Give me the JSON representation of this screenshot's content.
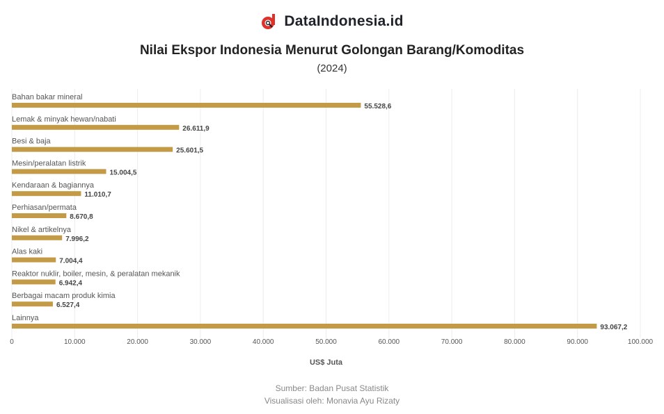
{
  "brand": {
    "name": "DataIndonesia.id",
    "icon": "dataindonesia-logo-icon"
  },
  "colors": {
    "bar": "#c39a45",
    "grid": "#ececec",
    "text": "#555555",
    "logo_red": "#e0302a"
  },
  "chart_data": {
    "type": "bar",
    "orientation": "horizontal",
    "title": "Nilai Ekspor Indonesia Menurut Golongan Barang/Komoditas",
    "subtitle": "(2024)",
    "xlabel": "US$ Juta",
    "ylabel": "",
    "xlim": [
      0,
      100000
    ],
    "grid": true,
    "legend": "none",
    "categories": [
      "Bahan bakar mineral",
      "Lemak & minyak hewan/nabati",
      "Besi & baja",
      "Mesin/peralatan listrik",
      "Kendaraan & bagiannya",
      "Perhiasan/permata",
      "Nikel & artikelnya",
      "Alas kaki",
      "Reaktor nuklir, boiler, mesin, & peralatan mekanik",
      "Berbagai macam produk kimia",
      "Lainnya"
    ],
    "values": [
      55528.6,
      26611.9,
      25601.5,
      15004.5,
      11010.7,
      8670.8,
      7996.2,
      7004.4,
      6942.4,
      6527.4,
      93067.2
    ],
    "value_labels": [
      "55.528,6",
      "26.611,9",
      "25.601,5",
      "15.004,5",
      "11.010,7",
      "8.670,8",
      "7.996,2",
      "7.004,4",
      "6.942,4",
      "6.527,4",
      "93.067,2"
    ],
    "xticks": [
      0,
      10000,
      20000,
      30000,
      40000,
      50000,
      60000,
      70000,
      80000,
      90000,
      100000
    ],
    "xtick_labels": [
      "0",
      "10.000",
      "20.000",
      "30.000",
      "40.000",
      "50.000",
      "60.000",
      "70.000",
      "80.000",
      "90.000",
      "100.000"
    ]
  },
  "footer": {
    "source": "Sumber: Badan Pusat Statistik",
    "credit": "Visualisasi oleh: Monavia Ayu Rizaty"
  }
}
